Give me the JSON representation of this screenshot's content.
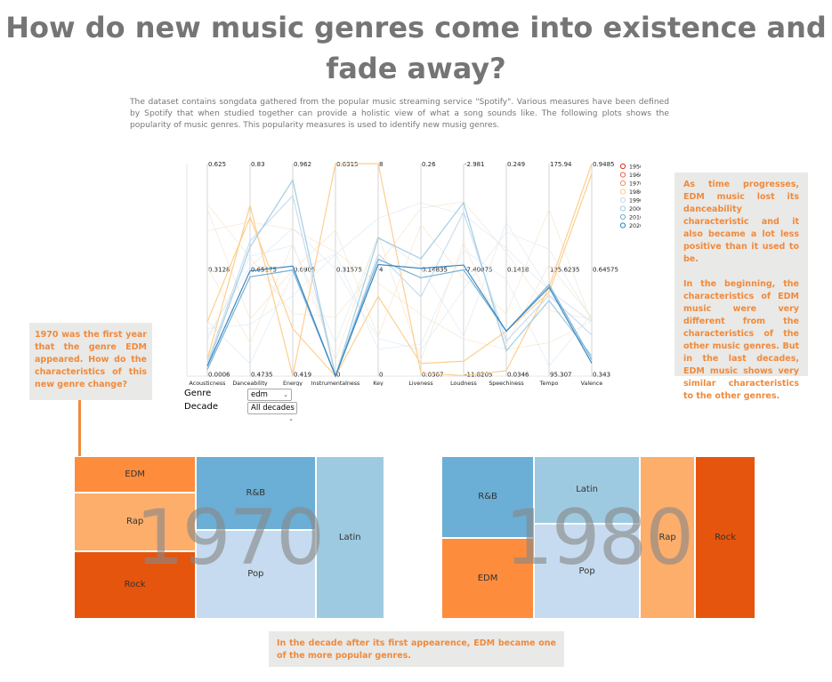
{
  "title": "How do new music genres come into existence and fade away?",
  "intro": "The dataset contains songdata gathered from the popular music streaming service \"Spotify\". Various measures have been defined by Spotify that when studied together can provide a holistic view of what a song sounds like. The following plots shows the popularity of music genres. This popularity measures is used to identify new musig genres.",
  "notes": {
    "left": "1970 was the first year that the genre EDM appeared. How do the characteristics of this new genre change?",
    "right_1": "As time progresses, EDM music lost its danceability characteristic and it also became a lot less positive than it used to be.",
    "right_2": "In the beginning, the characteristics of EDM music were very different from the characteristics of the other music genres. But in the last decades, EDM music shows very similar characteristics to the other genres.",
    "bottom": "In the decade after its first appearence, EDM became one of the more popular genres."
  },
  "controls": {
    "genre_label": "Genre",
    "genre_value": "edm",
    "decade_label": "Decade",
    "decade_value": "All decades"
  },
  "colors": {
    "edm_orange": "#f08a3c",
    "rock": "#e6550d",
    "edm_tile": "#fd8d3c",
    "rap": "#fdae6b",
    "rnb": "#6baed6",
    "pop": "#c6dbef",
    "latin": "#9ecae1"
  },
  "chart_data": [
    {
      "type": "parallel-coordinates",
      "axes": [
        {
          "name": "Acousticness",
          "ticks": [
            "0.625",
            "0.3128",
            "0.0006"
          ],
          "range": [
            0.0006,
            0.625
          ]
        },
        {
          "name": "Danceability",
          "ticks": [
            "0.83",
            "0.65175",
            "0.4735"
          ],
          "range": [
            0.4735,
            0.83
          ]
        },
        {
          "name": "Energy",
          "ticks": [
            "0.962",
            "0.6905",
            "0.419"
          ],
          "range": [
            0.419,
            0.962
          ]
        },
        {
          "name": "Instrumentalness",
          "ticks": [
            "0.6315",
            "0.31575",
            "0"
          ],
          "range": [
            0,
            0.6315
          ]
        },
        {
          "name": "Key",
          "ticks": [
            "8",
            "4",
            "0"
          ],
          "range": [
            0,
            8
          ]
        },
        {
          "name": "Liveness",
          "ticks": [
            "0.26",
            "0.14835",
            "0.0367"
          ],
          "range": [
            0.0367,
            0.26
          ]
        },
        {
          "name": "Loudness",
          "ticks": [
            "-2.981",
            "-7.40075",
            "-11.8205"
          ],
          "range": [
            -11.8205,
            -2.981
          ]
        },
        {
          "name": "Speechiness",
          "ticks": [
            "0.249",
            "0.1418",
            "0.0346"
          ],
          "range": [
            0.0346,
            0.249
          ]
        },
        {
          "name": "Tempo",
          "ticks": [
            "175.94",
            "135.6235",
            "95.307"
          ],
          "range": [
            95.307,
            175.94
          ]
        },
        {
          "name": "Valence",
          "ticks": [
            "0.9485",
            "0.64575",
            "0.343"
          ],
          "range": [
            0.343,
            0.9485
          ]
        }
      ],
      "legend": {
        "placement": "top-right",
        "entries": [
          {
            "label": "1950",
            "color": "#d7301f"
          },
          {
            "label": "1960",
            "color": "#ef6548"
          },
          {
            "label": "1970",
            "color": "#fc8d59"
          },
          {
            "label": "1980",
            "color": "#fdcc8a"
          },
          {
            "label": "1990",
            "color": "#c6dbef"
          },
          {
            "label": "2000",
            "color": "#9ecae1"
          },
          {
            "label": "2010",
            "color": "#6baed6"
          },
          {
            "label": "2020",
            "color": "#3182bd"
          }
        ]
      },
      "series": [
        {
          "name": "1970",
          "color": "#fdcc8a",
          "values": [
            0.05,
            0.76,
            0.42,
            0.6315,
            8,
            0.04,
            -11.8,
            0.04,
            129,
            0.9485
          ]
        },
        {
          "name": "1980",
          "color": "#fdcc8a",
          "values": [
            0.16,
            0.74,
            0.54,
            0.0,
            3,
            0.05,
            -11.2,
            0.08,
            127,
            0.92
          ]
        },
        {
          "name": "1990",
          "color": "#c6dbef",
          "values": [
            0.04,
            0.7,
            0.88,
            0.0,
            4.6,
            0.12,
            -5.0,
            0.07,
            126,
            0.46
          ]
        },
        {
          "name": "2000",
          "color": "#9ecae1",
          "values": [
            0.03,
            0.69,
            0.92,
            0.0,
            5.2,
            0.16,
            -4.6,
            0.06,
            124,
            0.4
          ]
        },
        {
          "name": "2010",
          "color": "#6baed6",
          "values": [
            0.02,
            0.64,
            0.69,
            0.0,
            4.4,
            0.14,
            -7.4,
            0.08,
            130,
            0.39
          ]
        },
        {
          "name": "2020",
          "color": "#3182bd",
          "values": [
            0.03,
            0.65,
            0.7,
            0.0,
            4.2,
            0.15,
            -7.2,
            0.08,
            129,
            0.38
          ]
        }
      ]
    },
    {
      "type": "treemap",
      "title": "1970",
      "items": [
        {
          "label": "EDM",
          "value": 8.2,
          "color": "#fd8d3c"
        },
        {
          "label": "Rap",
          "value": 13.2,
          "color": "#fdae6b"
        },
        {
          "label": "Rock",
          "value": 15.3,
          "color": "#e6550d"
        },
        {
          "label": "R&B",
          "value": 16.1,
          "color": "#6baed6"
        },
        {
          "label": "Pop",
          "value": 19.6,
          "color": "#c6dbef"
        },
        {
          "label": "Latin",
          "value": 25.9,
          "color": "#9ecae1"
        }
      ]
    },
    {
      "type": "treemap",
      "title": "1980",
      "items": [
        {
          "label": "R&B",
          "value": 16.8,
          "color": "#6baed6"
        },
        {
          "label": "EDM",
          "value": 16.8,
          "color": "#fd8d3c"
        },
        {
          "label": "Latin",
          "value": 13.7,
          "color": "#9ecae1"
        },
        {
          "label": "Pop",
          "value": 19.3,
          "color": "#c6dbef"
        },
        {
          "label": "Rap",
          "value": 17.6,
          "color": "#fdae6b"
        },
        {
          "label": "Rock",
          "value": 17.7,
          "color": "#e6550d"
        }
      ]
    }
  ]
}
